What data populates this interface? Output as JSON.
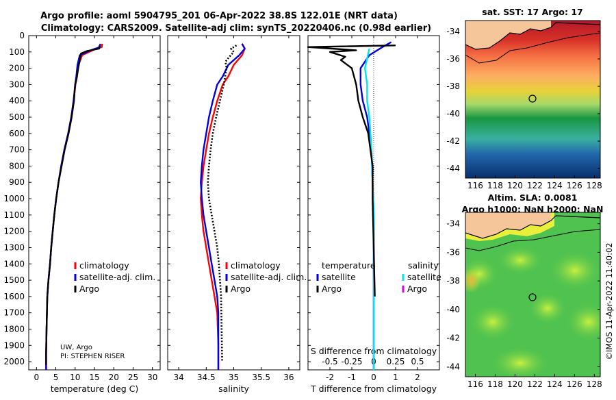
{
  "header": {
    "title_line1": "Argo profile: aoml 5904795_201 06-Apr-2022 38.8S 122.01E (NRT data)",
    "title_line2": "Climatology: CARS2009. Satellite-adj clim: synTS_20220406.nc (0.98d earlier)"
  },
  "colors": {
    "climatology": "#ff0000",
    "satellite_adj": "#0000dd",
    "argo": "#000000",
    "satellite": "#00e5ee",
    "argo_salinity": "#dd00dd",
    "land": "#f5c69a"
  },
  "maps": {
    "sst": {
      "title": "sat. SST: 17 Argo: 17",
      "lat_ticks": [
        "-34",
        "-36",
        "-38",
        "-40",
        "-42",
        "-44"
      ],
      "lon_ticks": [
        "116",
        "118",
        "120",
        "122",
        "124",
        "126",
        "128"
      ]
    },
    "sla": {
      "title1": "Altim. SLA: 0.0081",
      "title2": "Argo h1000: NaN h2000: NaN",
      "lat_ticks": [
        "-34",
        "-36",
        "-38",
        "-40",
        "-42",
        "-44"
      ],
      "lon_ticks": [
        "116",
        "118",
        "120",
        "122",
        "124",
        "126",
        "128"
      ]
    },
    "credit": "©IMOS 11-Apr-2022 11:40:02"
  },
  "chart_data": [
    {
      "type": "line",
      "name": "temperature",
      "xlabel": "temperature (deg C)",
      "ylabel": "",
      "xlim": [
        -2,
        32
      ],
      "ylim": [
        2050,
        0
      ],
      "xticks": [
        "0",
        "5",
        "10",
        "15",
        "20",
        "25",
        "30"
      ],
      "yticks": [
        "0",
        "100",
        "200",
        "300",
        "400",
        "500",
        "600",
        "700",
        "800",
        "900",
        "1000",
        "1100",
        "1200",
        "1300",
        "1400",
        "1500",
        "1600",
        "1700",
        "1800",
        "1900",
        "2000"
      ],
      "legend": [
        "climatology",
        "satellite-adj. clim.",
        "Argo"
      ],
      "annotation": [
        "UW, Argo",
        "PI: STEPHEN RISER"
      ],
      "series": [
        {
          "label": "climatology",
          "color": "#ff0000",
          "x": [
            17.0,
            16.9,
            14.5,
            11.8,
            10.9,
            10.5,
            10.1,
            9.6,
            9.0,
            8.2,
            7.2,
            6.4,
            5.7,
            5.1,
            4.6,
            4.2,
            3.8,
            3.5,
            3.1,
            2.8,
            2.6,
            2.5,
            2.5
          ],
          "y": [
            50,
            70,
            90,
            120,
            180,
            250,
            300,
            400,
            500,
            600,
            700,
            800,
            900,
            1000,
            1100,
            1200,
            1300,
            1400,
            1500,
            1600,
            1800,
            1950,
            2050
          ]
        },
        {
          "label": "satellite-adj. clim.",
          "color": "#0000dd",
          "x": [
            16.5,
            16.4,
            14.0,
            11.2,
            10.6,
            10.3,
            10.0,
            9.6,
            9.0,
            8.2,
            7.2,
            6.4,
            5.7,
            5.1,
            4.6,
            4.2,
            3.8,
            3.5,
            3.1,
            2.8,
            2.6,
            2.5,
            2.5
          ],
          "y": [
            50,
            70,
            90,
            120,
            180,
            250,
            300,
            400,
            500,
            600,
            700,
            800,
            900,
            1000,
            1100,
            1200,
            1300,
            1400,
            1500,
            1600,
            1800,
            1950,
            2050
          ]
        },
        {
          "label": "Argo",
          "color": "#000000",
          "x": [
            16.3,
            16.2,
            13.0,
            11.5,
            11.2,
            10.8,
            10.4,
            10.0,
            9.7,
            9.1,
            8.3,
            7.3,
            6.5,
            5.7,
            5.1,
            4.6,
            4.2,
            3.8,
            3.5,
            3.1,
            2.8,
            2.6,
            2.5,
            2.5
          ],
          "y": [
            60,
            80,
            95,
            110,
            150,
            200,
            260,
            300,
            400,
            500,
            600,
            700,
            800,
            900,
            1000,
            1100,
            1200,
            1300,
            1400,
            1500,
            1600,
            1800,
            1950,
            2020
          ]
        }
      ]
    },
    {
      "type": "line",
      "name": "salinity",
      "xlabel": "salinity",
      "ylabel": "",
      "xlim": [
        33.8,
        36.2
      ],
      "ylim": [
        2050,
        0
      ],
      "xticks": [
        "34",
        "34.5",
        "35",
        "35.5",
        "36"
      ],
      "legend": [
        "climatology",
        "satellite-adj. clim.",
        "Argo"
      ],
      "series": [
        {
          "label": "climatology",
          "color": "#ff0000",
          "x": [
            35.15,
            35.2,
            35.15,
            35.0,
            34.9,
            34.8,
            34.7,
            34.62,
            34.55,
            34.5,
            34.45,
            34.42,
            34.4,
            34.42,
            34.45,
            34.5,
            34.55,
            34.6,
            34.65,
            34.7,
            34.72,
            34.72
          ],
          "y": [
            50,
            80,
            120,
            180,
            250,
            300,
            400,
            500,
            600,
            700,
            800,
            900,
            1000,
            1100,
            1200,
            1300,
            1400,
            1500,
            1600,
            1700,
            1900,
            2050
          ]
        },
        {
          "label": "satellite-adj. clim.",
          "color": "#0000dd",
          "x": [
            35.15,
            35.2,
            35.1,
            34.9,
            34.8,
            34.7,
            34.62,
            34.55,
            34.5,
            34.45,
            34.42,
            34.4,
            34.42,
            34.45,
            34.5,
            34.55,
            34.6,
            34.65,
            34.7,
            34.72,
            34.72
          ],
          "y": [
            50,
            80,
            120,
            180,
            250,
            300,
            400,
            500,
            600,
            700,
            800,
            900,
            1000,
            1100,
            1200,
            1300,
            1400,
            1500,
            1600,
            1700,
            2050
          ]
        },
        {
          "label": "Argo",
          "color": "#000000",
          "dashed": true,
          "x": [
            35.05,
            34.95,
            35.0,
            34.92,
            34.85,
            34.87,
            34.82,
            34.75,
            34.68,
            34.62,
            34.58,
            34.55,
            34.53,
            34.55,
            34.6,
            34.65,
            34.7,
            34.73,
            34.75,
            34.77,
            34.78,
            34.79
          ],
          "y": [
            60,
            80,
            100,
            130,
            160,
            200,
            300,
            400,
            500,
            600,
            700,
            800,
            900,
            1000,
            1100,
            1200,
            1300,
            1400,
            1500,
            1600,
            1800,
            2000
          ]
        }
      ]
    },
    {
      "type": "line",
      "name": "difference",
      "xlabel": "T difference from climatology",
      "xlabel2": "S difference from climatology",
      "xlim": [
        -3,
        3
      ],
      "ylim": [
        2050,
        0
      ],
      "xticks": [
        "-2",
        "-1",
        "0",
        "1",
        "2"
      ],
      "xticks_s": [
        "-0.5",
        "-0.25",
        "0",
        "0.25",
        "0.5"
      ],
      "legend_t_title": "temperature",
      "legend_s_title": "salinity",
      "legend_t": [
        "satellite",
        "Argo"
      ],
      "legend_s": [
        "satellite",
        "Argo"
      ],
      "series": [
        {
          "label": "T satellite",
          "color": "#0000dd",
          "x": [
            0.8,
            0.4,
            -0.2,
            -0.6,
            -0.6,
            -0.5,
            -0.3,
            -0.2,
            -0.1,
            -0.05,
            0,
            0,
            0,
            0
          ],
          "y": [
            40,
            70,
            120,
            200,
            300,
            400,
            500,
            600,
            700,
            900,
            1100,
            1300,
            1600,
            2050
          ]
        },
        {
          "label": "S satellite",
          "color": "#00e5ee",
          "x": [
            -0.2,
            -0.4,
            -0.3,
            -0.3,
            -0.2,
            -0.1,
            -0.05,
            0,
            0
          ],
          "y": [
            80,
            200,
            300,
            400,
            500,
            700,
            900,
            1100,
            2050
          ]
        },
        {
          "label": "T Argo",
          "color": "#000000",
          "x": [
            1.0,
            -3.0,
            -0.8,
            -2.0,
            -1.3,
            -1.5,
            -1.0,
            -0.8,
            -0.7,
            -0.5,
            -0.25,
            -0.15,
            -0.05,
            -0.05,
            0,
            0.05
          ],
          "y": [
            60,
            70,
            90,
            100,
            130,
            150,
            200,
            300,
            400,
            500,
            600,
            700,
            800,
            1000,
            1300,
            1600
          ]
        }
      ]
    }
  ]
}
